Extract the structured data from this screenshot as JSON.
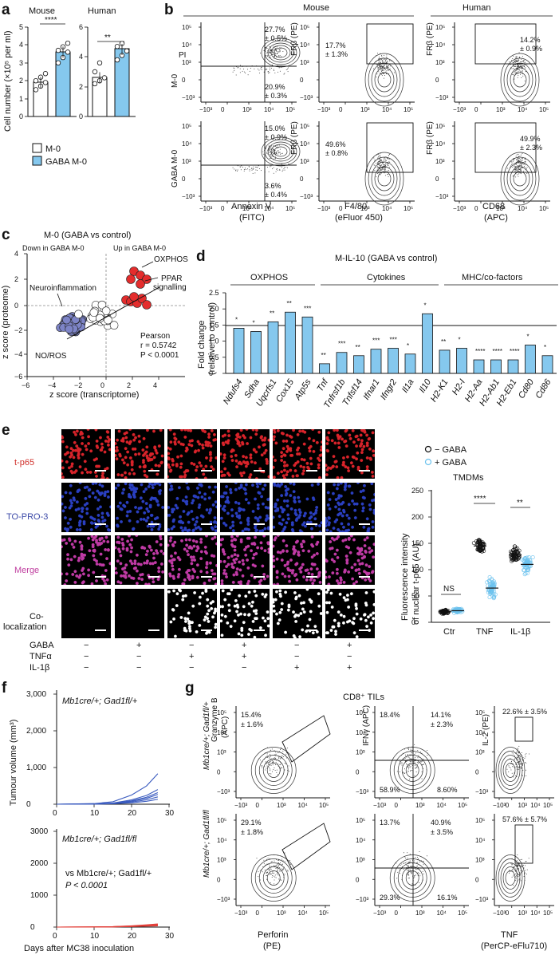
{
  "panels": {
    "a": {
      "label": "a",
      "ylabel": "Cell number (×10⁵ per ml)",
      "groups": [
        {
          "title": "Mouse",
          "sig": "****",
          "ylim": [
            0,
            5
          ],
          "yticks": [
            "0",
            "1",
            "2",
            "3",
            "4",
            "5"
          ],
          "values": [
            1.9,
            3.6
          ],
          "points": [
            [
              1.5,
              1.7,
              1.9,
              2.0,
              2.2,
              2.4
            ],
            [
              3.0,
              3.3,
              3.6,
              3.7,
              3.9,
              4.1
            ]
          ]
        },
        {
          "title": "Human",
          "sig": "**",
          "ylim": [
            0,
            6
          ],
          "yticks": [
            "0",
            "2",
            "4",
            "6"
          ],
          "values": [
            2.6,
            4.5
          ],
          "points": [
            [
              2.2,
              2.4,
              2.6,
              3.0,
              3.6
            ],
            [
              3.8,
              4.1,
              4.4,
              4.7,
              4.9
            ]
          ]
        }
      ],
      "legend": [
        {
          "name": "M-0",
          "color": "#ffffff"
        },
        {
          "name": "GABA M-0",
          "color": "#85c8ee"
        }
      ]
    },
    "b": {
      "label": "b",
      "mouse_title": "Mouse",
      "human_title": "Human",
      "row_labels": [
        "M-0",
        "GABA M-0"
      ],
      "col1": {
        "ylabel": "PI",
        "xlabel": "Annexin V",
        "xunit": "(FITC)",
        "stats": [
          [
            "27.7%",
            "± 0.5%",
            "20.9%",
            "± 0.3%"
          ],
          [
            "15.0%",
            "± 0.9%",
            "3.6%",
            "± 0.4%"
          ]
        ]
      },
      "col2": {
        "ylabel": "FRβ (PE)",
        "xlabel": "F4/80",
        "xunit": "(eFluor 450)",
        "stats": [
          [
            "17.7%",
            "± 1.3%"
          ],
          [
            "49.6%",
            "± 0.8%"
          ]
        ]
      },
      "col3": {
        "ylabel": "FRβ (PE)",
        "xlabel": "CD68",
        "xunit": "(APC)",
        "stats": [
          [
            "14.2%",
            "± 0.9%"
          ],
          [
            "49.9%",
            "± 2.3%"
          ]
        ]
      },
      "yticks": [
        "10⁵",
        "10⁴",
        "10³",
        "0",
        "−10³"
      ],
      "xticks": [
        "−10³",
        "0",
        "10³",
        "10⁴",
        "10⁵"
      ]
    },
    "c": {
      "label": "c",
      "title": "M-0 (GABA vs control)",
      "down": "Down in GABA M-0",
      "up": "Up in GABA M-0",
      "xlabel": "z score (transcriptome)",
      "ylabel": "z score (proteome)",
      "xticks": [
        "−6",
        "−4",
        "−2",
        "0",
        "2",
        "4"
      ],
      "yticks": [
        "4",
        "2",
        "0",
        "−2",
        "−4",
        "−6"
      ],
      "annotations": [
        "OXPHOS",
        "PPAR",
        "signalling",
        "Neuroinflammation",
        "NO/ROS"
      ],
      "stats": [
        "Pearson",
        "r = 0.5742",
        "P < 0.0001"
      ]
    },
    "d": {
      "label": "d",
      "title": "M-IL-10 (GABA vs control)",
      "groups": [
        "OXPHOS",
        "Cytokines",
        "MHC/co-factors"
      ],
      "ylabel": "Fold change",
      "ylabel2": "(relative to control)",
      "yticks": [
        "0",
        "0.5",
        "1.0",
        "1.5",
        "2.0",
        "2.5"
      ],
      "bar_color": "#85c8ee"
    },
    "e": {
      "label": "e",
      "row_labels": [
        "t-p65",
        "TO-PRO-3",
        "Merge",
        "Co-",
        "localization"
      ],
      "treat_labels": [
        "GABA",
        "TNFα",
        "IL-1β"
      ],
      "treat_matrix": [
        [
          "−",
          "+",
          "−",
          "+",
          "−",
          "+"
        ],
        [
          "−",
          "−",
          "+",
          "+",
          "−",
          "−"
        ],
        [
          "−",
          "−",
          "−",
          "−",
          "+",
          "+"
        ]
      ],
      "legend": [
        "− GABA",
        "+ GABA"
      ],
      "plot_title": "TMDMs",
      "ylabel": "Fluorescence intensity",
      "ylabel2": "of nuclear t-p65 (AU)",
      "yticks": [
        "0",
        "50",
        "100",
        "150",
        "200",
        "250"
      ],
      "categories": [
        "Ctr",
        "TNF",
        "IL-1β"
      ],
      "sig": [
        "NS",
        "****",
        "**"
      ],
      "values": [
        [
          20,
          22
        ],
        [
          145,
          65
        ],
        [
          128,
          110
        ]
      ]
    },
    "f": {
      "label": "f",
      "top_title": "Mb1cre/+; Gad1fl/+",
      "bottom_title": "Mb1cre/+; Gad1fl/fl",
      "ylabel": "Tumour volume (mm³)",
      "xlabel": "Days after MC38 inoculation",
      "top_yticks": [
        "0",
        "1,000",
        "2,000",
        "3,000"
      ],
      "bottom_yticks": [
        "0",
        "1000",
        "2000",
        "3000"
      ],
      "xticks": [
        "0",
        "10",
        "20",
        "30"
      ],
      "vs": "vs Mb1cre/+; Gad1fl/+",
      "p": "P < 0.0001"
    },
    "g": {
      "label": "g",
      "title": "CD8⁺ TILs",
      "col1": {
        "ylabel": "Granzyme B",
        "yunit": "(APC)",
        "xlabel": "Perforin",
        "xunit": "(PE)",
        "stats": [
          [
            "15.4%",
            "± 1.6%"
          ],
          [
            "29.1%",
            "± 1.8%"
          ]
        ]
      },
      "col2": {
        "ylabel": "IFNγ (APC)",
        "stats": [
          [
            "18.4%",
            "14.1%",
            "± 2.3%",
            "58.9%",
            "8.60%"
          ],
          [
            "13.7%",
            "40.9%",
            "± 3.5%",
            "29.3%",
            "16.1%"
          ]
        ]
      },
      "col3": {
        "ylabel": "IL-2 (PE)",
        "xlabel": "TNF",
        "xunit": "(PerCP-eFlu710)",
        "stats": [
          [
            "22.6% ± 3.5%"
          ],
          [
            "57.6% ± 5.7%"
          ]
        ]
      }
    }
  }
}
